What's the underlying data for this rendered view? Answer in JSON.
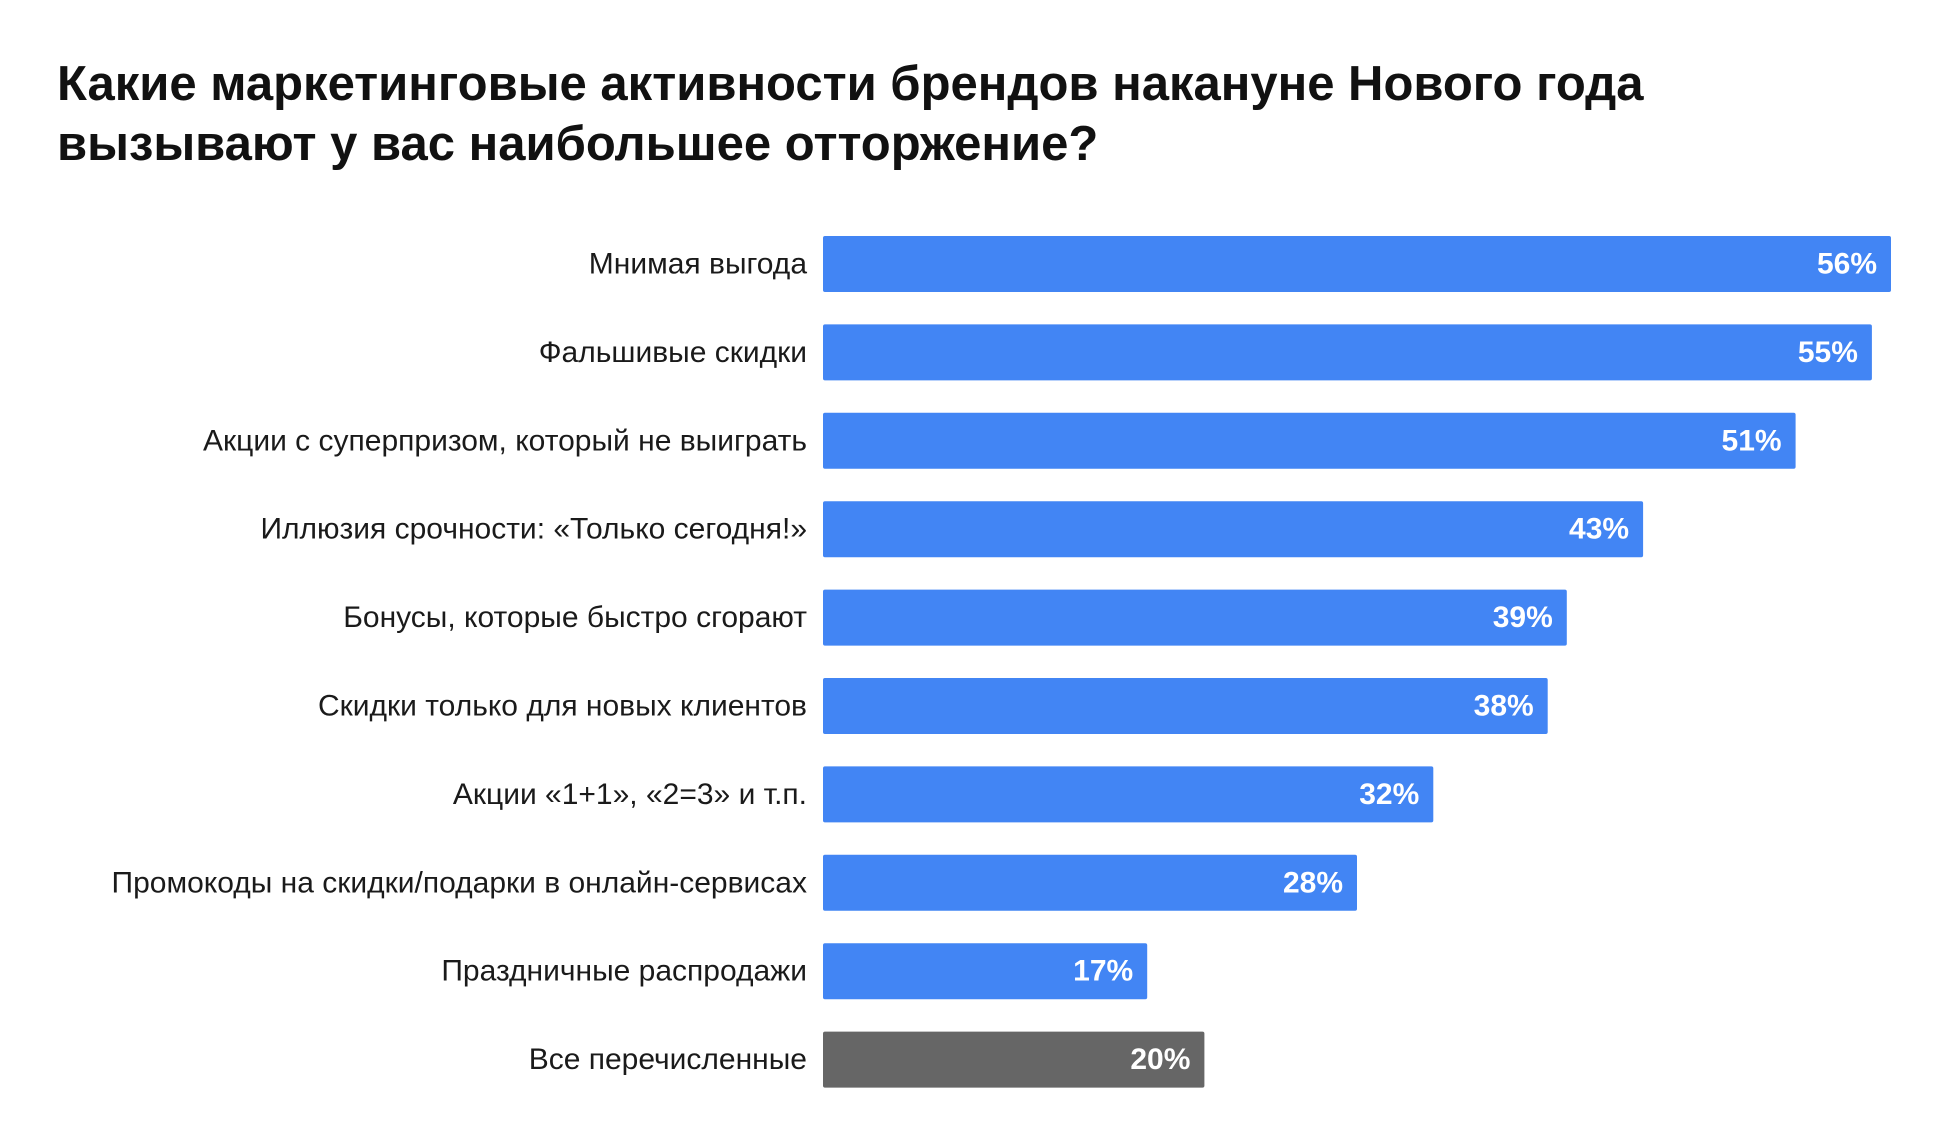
{
  "chart_data": {
    "type": "bar",
    "orientation": "horizontal",
    "title": "Какие маркетинговые активности брендов накануне Нового года\nвызывают у вас наибольшее отторжение?",
    "categories": [
      "Мнимая выгода",
      "Фальшивые скидки",
      "Акции с суперпризом, который не выиграть",
      "Иллюзия срочности: «Только сегодня!»",
      "Бонусы, которые быстро сгорают",
      "Скидки только для новых клиентов",
      "Акции «1+1», «2=3» и т.п.",
      "Промокоды на скидки/подарки в онлайн-сервисах",
      "Праздничные распродажи",
      "Все перечисленные"
    ],
    "values": [
      56,
      55,
      51,
      43,
      39,
      38,
      32,
      28,
      17,
      20
    ],
    "value_labels": [
      "56%",
      "55%",
      "51%",
      "43%",
      "39%",
      "38%",
      "32%",
      "28%",
      "17%",
      "20%"
    ],
    "bar_colors": [
      "#4285f4",
      "#4285f4",
      "#4285f4",
      "#4285f4",
      "#4285f4",
      "#4285f4",
      "#4285f4",
      "#4285f4",
      "#4285f4",
      "#666666"
    ],
    "xlim": [
      0,
      56
    ],
    "grid": false,
    "legend": "none"
  }
}
